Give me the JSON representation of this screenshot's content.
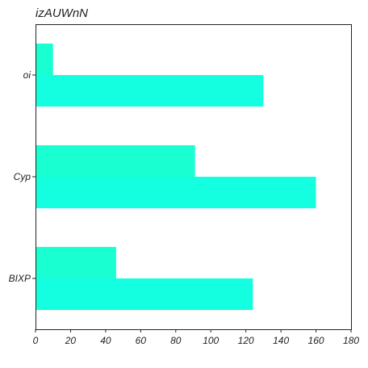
{
  "chart_data": {
    "type": "bar",
    "orientation": "horizontal",
    "title": "izAUWnN",
    "xlabel": "",
    "ylabel": "",
    "categories": [
      "oi",
      "Cyp",
      "BIXP"
    ],
    "series": [
      {
        "values": [
          130,
          160,
          124
        ],
        "color": "#14ffe0"
      },
      {
        "values": [
          10,
          91,
          46
        ],
        "color": "#1affd2"
      }
    ],
    "xlim": [
      0,
      180
    ],
    "xticks": [
      0,
      20,
      40,
      60,
      80,
      100,
      120,
      140,
      160,
      180
    ],
    "grid": false,
    "legend": "none"
  }
}
